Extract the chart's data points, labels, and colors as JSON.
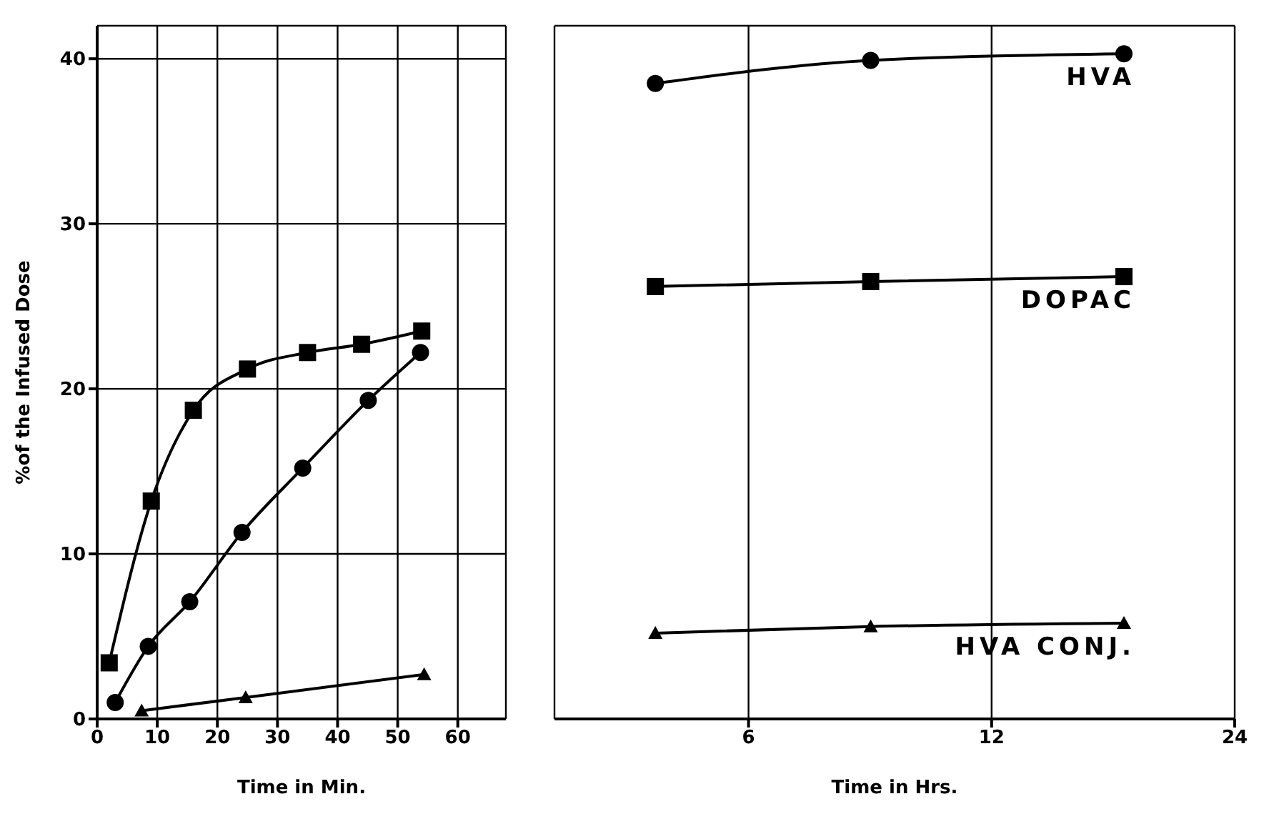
{
  "chart_data": [
    {
      "type": "line",
      "xlabel": "Time in Min.",
      "ylabel": "%of the Infused Dose",
      "xlim": [
        0,
        68
      ],
      "xticks": [
        0,
        10,
        20,
        30,
        40,
        50,
        60
      ],
      "ylim": [
        0,
        42
      ],
      "yticks": [
        0,
        10,
        20,
        30,
        40
      ],
      "grid": true,
      "line_style": "solid",
      "series": [
        {
          "color": "#000000",
          "marker": "square",
          "x": [
            2,
            9,
            16,
            25,
            35,
            44,
            54
          ],
          "values": [
            3.4,
            13.2,
            18.7,
            21.2,
            22.2,
            22.7,
            23.5
          ]
        },
        {
          "color": "#000000",
          "marker": "circle",
          "x": [
            3,
            8.5,
            15.4,
            24.1,
            34.2,
            45.1,
            53.8
          ],
          "values": [
            1.0,
            4.4,
            7.1,
            11.3,
            15.2,
            19.3,
            22.2
          ]
        },
        {
          "color": "#000000",
          "marker": "triangle",
          "x": [
            7.4,
            24.7,
            54.4
          ],
          "values": [
            0.5,
            1.3,
            2.7
          ]
        }
      ]
    },
    {
      "type": "line",
      "xlabel": "Time in Hrs.",
      "log": "x",
      "xlim": [
        3.45,
        24
      ],
      "xticks": [
        6,
        12,
        24
      ],
      "ylim": [
        0,
        42
      ],
      "yticks": [
        0,
        10,
        20,
        30,
        40
      ],
      "grid": true,
      "tick_labels": "x",
      "line_style": "solid",
      "series": [
        {
          "name": "HVA",
          "color": "#000000",
          "marker": "circle",
          "x": [
            4.6,
            8.5,
            17.5
          ],
          "values": [
            38.5,
            39.9,
            40.3
          ]
        },
        {
          "name": "DOPAC",
          "color": "#000000",
          "marker": "square",
          "x": [
            4.6,
            8.5,
            17.5
          ],
          "values": [
            26.2,
            26.5,
            26.8
          ]
        },
        {
          "name": "HVA CONJ.",
          "color": "#000000",
          "marker": "triangle",
          "x": [
            4.6,
            8.5,
            17.5
          ],
          "values": [
            5.2,
            5.6,
            5.8
          ]
        }
      ]
    }
  ]
}
